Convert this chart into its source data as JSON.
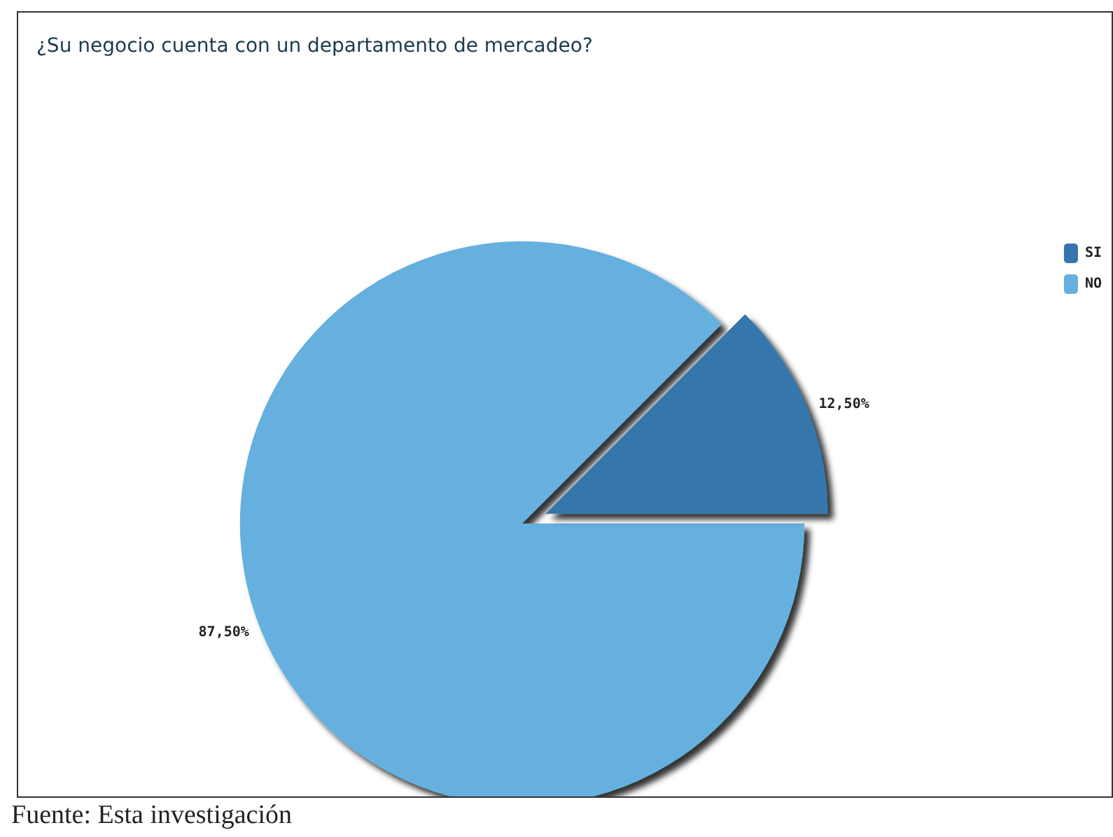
{
  "chart_data": {
    "type": "pie",
    "title": "¿Su negocio cuenta con un departamento de mercadeo?",
    "categories": [
      "SI",
      "NO"
    ],
    "values": [
      12.5,
      87.5
    ],
    "colors": [
      "#3476ad",
      "#65b0de"
    ],
    "value_labels": [
      "12,50%",
      "87,50%"
    ],
    "legend": "right",
    "annotations": [
      "Fuente: Esta investigación"
    ]
  }
}
